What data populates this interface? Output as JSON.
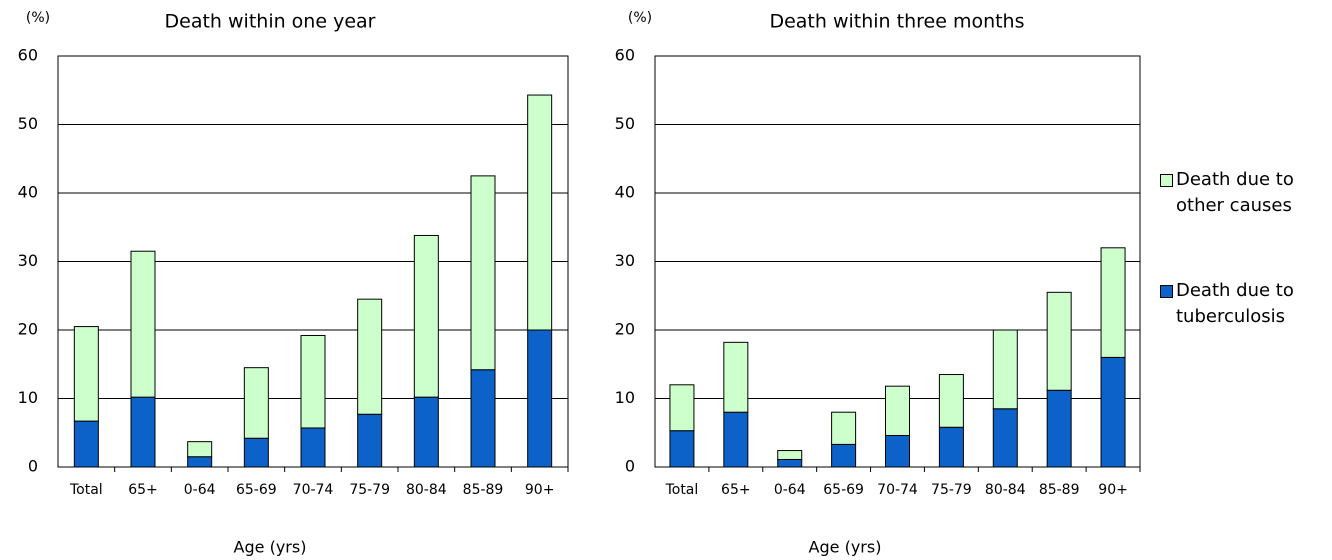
{
  "chart_data": [
    {
      "type": "stacked_bar",
      "title": "Death within one year",
      "y_label": "(%)",
      "x_label": "Age (yrs)",
      "categories": [
        "Total",
        "65+",
        "0-64",
        "65-69",
        "70-74",
        "75-79",
        "80-84",
        "85-89",
        "90+"
      ],
      "series": [
        {
          "name": "Death due to tuberculosis",
          "color": "#0d62c9",
          "values": [
            6.7,
            10.2,
            1.5,
            4.2,
            5.7,
            7.7,
            10.2,
            14.2,
            20.0
          ]
        },
        {
          "name": "Death due to other causes",
          "color": "#ccffcc",
          "values": [
            13.8,
            21.3,
            2.2,
            10.3,
            13.5,
            16.8,
            23.6,
            28.3,
            34.3
          ]
        }
      ],
      "ylim": [
        0,
        60
      ],
      "yticks": [
        0,
        10,
        20,
        30,
        40,
        50,
        60
      ],
      "grid": true
    },
    {
      "type": "stacked_bar",
      "title": "Death within three months",
      "y_label": "(%)",
      "x_label": "Age (yrs)",
      "categories": [
        "Total",
        "65+",
        "0-64",
        "65-69",
        "70-74",
        "75-79",
        "80-84",
        "85-89",
        "90+"
      ],
      "series": [
        {
          "name": "Death due to tuberculosis",
          "color": "#0d62c9",
          "values": [
            5.3,
            8.0,
            1.1,
            3.3,
            4.6,
            5.8,
            8.5,
            11.2,
            16.0
          ]
        },
        {
          "name": "Death due to other causes",
          "color": "#ccffcc",
          "values": [
            6.7,
            10.2,
            1.3,
            4.7,
            7.2,
            7.7,
            11.5,
            14.3,
            16.0
          ]
        }
      ],
      "ylim": [
        0,
        60
      ],
      "yticks": [
        0,
        10,
        20,
        30,
        40,
        50,
        60
      ],
      "grid": true,
      "legend": "right"
    }
  ]
}
